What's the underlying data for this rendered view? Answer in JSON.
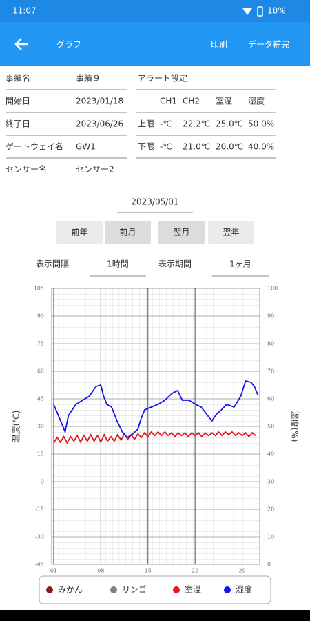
{
  "status_bar": {
    "time": "11:07",
    "battery": "18%"
  },
  "app_bar": {
    "title": "グラフ",
    "actions": [
      "印刷",
      "データ補完"
    ]
  },
  "info": [
    {
      "label": "事績名",
      "value": "事績９"
    },
    {
      "label": "開始日",
      "value": "2023/01/18"
    },
    {
      "label": "終了日",
      "value": "2023/06/26"
    },
    {
      "label": "ゲートウェイ名",
      "value": "GW1"
    },
    {
      "label": "センサー名",
      "value": "センサー2"
    }
  ],
  "alert": {
    "title": "アラート設定",
    "header": [
      "CH1",
      "CH2",
      "室温",
      "湿度"
    ],
    "rows": [
      {
        "label": "上限",
        "values": [
          "-℃",
          "22.2℃",
          "25.0℃",
          "50.0%"
        ]
      },
      {
        "label": "下限",
        "values": [
          "-℃",
          "21.0℃",
          "20.0℃",
          "40.0%"
        ]
      }
    ]
  },
  "date": "2023/05/01",
  "buttons": [
    "前年",
    "前月",
    "翌月",
    "翌年"
  ],
  "interval": {
    "label": "表示間隔",
    "value": "1時間"
  },
  "period": {
    "label": "表示期間",
    "value": "1ヶ月"
  },
  "chart_data": {
    "type": "line",
    "ylabel": "温度(℃)",
    "y2label": "湿度(%)",
    "grid": true,
    "xlim": [
      0.7,
      31.6
    ],
    "xticks": [
      {
        "value": 1,
        "label": "01"
      },
      {
        "value": 8,
        "label": "08"
      },
      {
        "value": 15,
        "label": "15"
      },
      {
        "value": 22,
        "label": "22"
      },
      {
        "value": 29,
        "label": "29"
      }
    ],
    "ylim": [
      -45,
      105
    ],
    "yticks": [
      -45,
      -30,
      -15,
      0,
      15,
      30,
      45,
      60,
      75,
      90,
      105
    ],
    "y2lim": [
      0,
      100
    ],
    "y2ticks": [
      0,
      10,
      20,
      30,
      40,
      50,
      60,
      70,
      80,
      90,
      100
    ],
    "series": [
      {
        "name": "みかん",
        "color": "#8b1a1a"
      },
      {
        "name": "リンゴ",
        "color": "#808080"
      },
      {
        "name": "室温",
        "color": "#e8141c",
        "x": [
          1,
          1.5,
          2,
          2.5,
          3,
          3.5,
          4,
          4.5,
          5,
          5.5,
          6,
          6.5,
          7,
          7.5,
          8,
          8.5,
          9,
          9.5,
          10,
          10.5,
          11,
          11.5,
          12,
          12.5,
          13,
          13.5,
          14,
          14.5,
          15,
          15.5,
          16,
          16.5,
          17,
          17.5,
          18,
          18.5,
          19,
          19.5,
          20,
          20.5,
          21,
          21.5,
          22,
          22.5,
          23,
          23.5,
          24,
          24.5,
          25,
          25.5,
          26,
          26.5,
          27,
          27.5,
          28,
          28.5,
          29,
          29.5,
          30,
          30.5,
          31
        ],
        "values": [
          21,
          24,
          21.5,
          24.5,
          21,
          24.5,
          22,
          25,
          21.5,
          25,
          22,
          25.5,
          22,
          25,
          21.5,
          25.5,
          22,
          24.5,
          22,
          25.5,
          22.5,
          26,
          23,
          25.5,
          23,
          26,
          24,
          26.5,
          24.5,
          27,
          25,
          27,
          25,
          27,
          25,
          26.5,
          24.5,
          26.5,
          25,
          26.5,
          24.5,
          26.5,
          25,
          26.5,
          24.5,
          26.5,
          25,
          26.5,
          25,
          27,
          25,
          27,
          25.5,
          27,
          25,
          26.5,
          25,
          26.5,
          24.5,
          26.5,
          25
        ]
      },
      {
        "name": "湿度",
        "color": "#1414e6",
        "axis": "y2",
        "x": [
          1,
          2.2,
          2.7,
          3.2,
          4.3,
          5.3,
          6.3,
          7.3,
          8,
          8.4,
          8.9,
          9.6,
          10.4,
          11.2,
          11.9,
          12.6,
          13.5,
          14,
          14.5,
          15.5,
          16.5,
          17.5,
          18.6,
          19.4,
          20.1,
          21.1,
          22.1,
          22.9,
          23.7,
          24.5,
          25.2,
          25.9,
          26.7,
          27.8,
          28.8,
          29.5,
          30.3,
          30.8,
          31.3
        ],
        "values": [
          58,
          51,
          48,
          54,
          58,
          59.5,
          61,
          64.5,
          65,
          61,
          58,
          57,
          52,
          48,
          46,
          47,
          49,
          53,
          56,
          57,
          58,
          59.5,
          62,
          63,
          59.5,
          59.5,
          58,
          57,
          54.5,
          52,
          54.5,
          56,
          58,
          57,
          61,
          66.5,
          66,
          64.5,
          61.5
        ]
      }
    ]
  }
}
